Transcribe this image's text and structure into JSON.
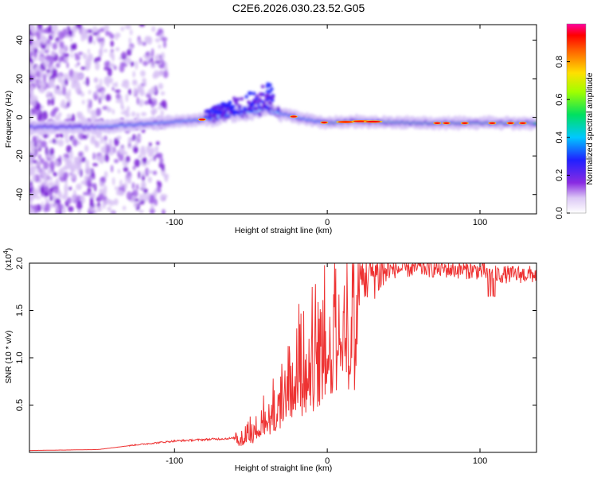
{
  "title": "C2E6.2026.030.23.52.G05",
  "chart_data": [
    {
      "type": "heatmap",
      "xlabel": "Height of straight line (km)",
      "ylabel": "Frequency (Hz)",
      "xlim": [
        -195,
        137
      ],
      "ylim": [
        -50,
        48
      ],
      "xticks": [
        -100,
        0,
        100
      ],
      "yticks": [
        -40,
        -20,
        0,
        20,
        40
      ],
      "colorbar": {
        "label": "Normalized spectral amplitude",
        "range": [
          0,
          1
        ],
        "ticks": [
          0.0,
          0.2,
          0.4,
          0.6,
          0.8
        ]
      },
      "ridge": {
        "x": [
          -195,
          -150,
          -110,
          -80,
          -60,
          -45,
          -40,
          -35,
          -20,
          0,
          20,
          60,
          100,
          137
        ],
        "freq": [
          -5,
          -5,
          -3,
          -1,
          2,
          3,
          5,
          3,
          0,
          -3,
          -2,
          -3,
          -3,
          -3
        ]
      }
    },
    {
      "type": "line",
      "xlabel": "Height of straight line (km)",
      "ylabel": "SNR (10 * v/v)",
      "y_scale_label": "(x10^4)",
      "xlim": [
        -195,
        137
      ],
      "ylim": [
        0,
        2.0
      ],
      "xticks": [
        -100,
        0,
        100
      ],
      "yticks": [
        0.5,
        1.0,
        1.5,
        2.0
      ],
      "color": "#ee3333",
      "envelope": {
        "x": [
          -195,
          -150,
          -125,
          -100,
          -75,
          -60,
          -50,
          -40,
          -30,
          -20,
          -10,
          0,
          10,
          20,
          30,
          40,
          60,
          100,
          110,
          137
        ],
        "y": [
          0.02,
          0.03,
          0.08,
          0.12,
          0.14,
          0.15,
          0.25,
          0.45,
          0.7,
          1.0,
          1.2,
          1.4,
          1.6,
          1.8,
          1.9,
          1.93,
          1.95,
          1.92,
          1.88,
          1.88
        ]
      }
    }
  ]
}
